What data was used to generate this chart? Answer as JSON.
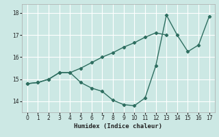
{
  "xlabel": "Humidex (Indice chaleur)",
  "background_color": "#cce8e4",
  "grid_color": "#ffffff",
  "line_color": "#2e6e60",
  "xlim": [
    -0.5,
    17.5
  ],
  "ylim": [
    13.5,
    18.4
  ],
  "yticks": [
    14,
    15,
    16,
    17,
    18
  ],
  "xticks": [
    0,
    1,
    2,
    3,
    4,
    5,
    6,
    7,
    8,
    9,
    10,
    11,
    12,
    13,
    14,
    15,
    16,
    17
  ],
  "series1_x": [
    0,
    1,
    2,
    3,
    4,
    5,
    6,
    7,
    8,
    9,
    10,
    11,
    12,
    13,
    14,
    15,
    16,
    17
  ],
  "series1_y": [
    14.8,
    14.85,
    15.0,
    15.3,
    15.3,
    14.85,
    14.6,
    14.45,
    14.05,
    13.85,
    13.8,
    14.15,
    15.6,
    17.9,
    17.0,
    16.25,
    16.55,
    17.85
  ],
  "series2_x": [
    0,
    1,
    2,
    3,
    4,
    5,
    6,
    7,
    8,
    9,
    10,
    11,
    12,
    13
  ],
  "series2_y": [
    14.8,
    14.85,
    15.0,
    15.3,
    15.3,
    15.5,
    15.75,
    16.0,
    16.2,
    16.45,
    16.65,
    16.9,
    17.1,
    17.0
  ]
}
